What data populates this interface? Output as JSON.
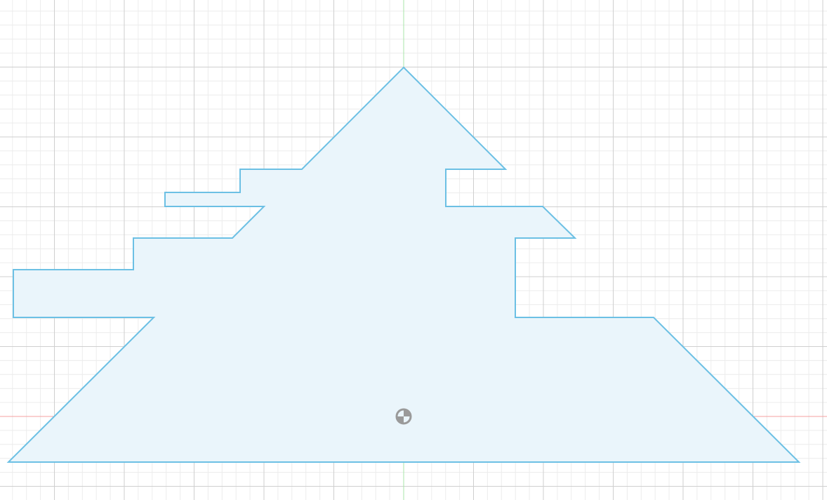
{
  "canvas": {
    "background_color": "#ffffff",
    "grid_minor_color": "#ececec",
    "grid_major_color": "#cfcfcf"
  },
  "axes": {
    "x_axis_color": "#f4a0a0",
    "y_axis_color": "#a8e6a8"
  },
  "sketch_profile": {
    "stroke_color": "#6cc0e4",
    "fill_color": "#eaf5fb",
    "closed": true
  },
  "origin_marker": {
    "icon": "origin-point-icon",
    "color": "#9a9a9a"
  }
}
